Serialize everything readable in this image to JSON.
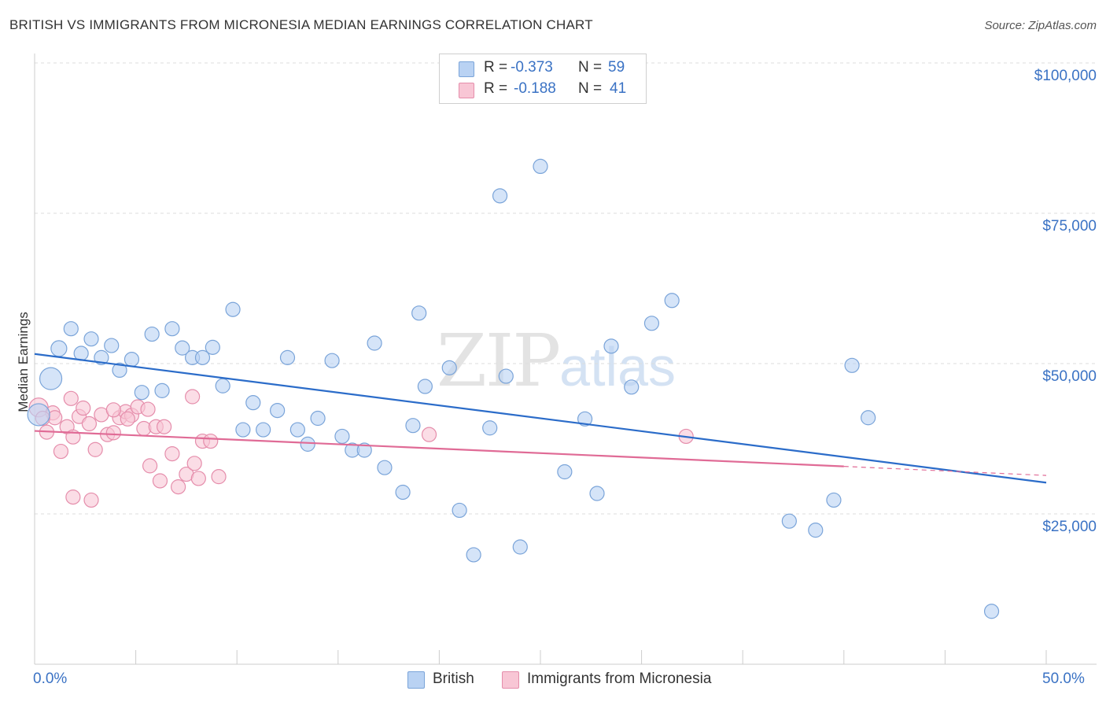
{
  "header": {
    "title": "BRITISH VS IMMIGRANTS FROM MICRONESIA MEDIAN EARNINGS CORRELATION CHART",
    "source": "Source: ZipAtlas.com"
  },
  "watermark": {
    "zip": "ZIP",
    "atlas": "atlas"
  },
  "legend": {
    "rows": [
      {
        "r_label": "R =",
        "r_value": "-0.373",
        "n_label": "N =",
        "n_value": "59"
      },
      {
        "r_label": "R =",
        "r_value": "-0.188",
        "n_label": "N =",
        "n_value": "41"
      }
    ]
  },
  "colors": {
    "british_fill": "#b9d2f3",
    "british_stroke": "#7aa4d9",
    "british_line": "#2b6cc9",
    "micronesia_fill": "#f8c6d5",
    "micronesia_stroke": "#e58dab",
    "micronesia_line": "#e06b96",
    "tick_label": "#3a72c4",
    "grid": "#dddddd"
  },
  "chart_data": {
    "type": "scatter",
    "title": "BRITISH VS IMMIGRANTS FROM MICRONESIA MEDIAN EARNINGS CORRELATION CHART",
    "xlabel": "",
    "ylabel": "Median Earnings",
    "xlim": [
      0,
      50
    ],
    "ylim": [
      5000,
      105000
    ],
    "x_tick_labels": [
      "0.0%",
      "50.0%"
    ],
    "y_ticks": [
      25000,
      50000,
      75000,
      100000
    ],
    "y_tick_labels": [
      "$25,000",
      "$50,000",
      "$75,000",
      "$100,000"
    ],
    "grid": true,
    "legend_position": "top-center",
    "series": [
      {
        "name": "British",
        "points": [
          [
            0.2,
            41500,
            14
          ],
          [
            0.8,
            47500,
            14
          ],
          [
            1.2,
            52500,
            10
          ],
          [
            1.8,
            55800,
            9
          ],
          [
            2.3,
            51700,
            9
          ],
          [
            2.8,
            54100,
            9
          ],
          [
            3.3,
            51000,
            9
          ],
          [
            3.8,
            53000,
            9
          ],
          [
            4.2,
            48900,
            9
          ],
          [
            4.8,
            50700,
            9
          ],
          [
            5.3,
            45200,
            9
          ],
          [
            5.8,
            54900,
            9
          ],
          [
            6.3,
            45500,
            9
          ],
          [
            6.8,
            55800,
            9
          ],
          [
            7.3,
            52600,
            9
          ],
          [
            7.8,
            51000,
            9
          ],
          [
            8.3,
            51000,
            9
          ],
          [
            8.8,
            52700,
            9
          ],
          [
            9.3,
            46300,
            9
          ],
          [
            9.8,
            59000,
            9
          ],
          [
            10.3,
            39000,
            9
          ],
          [
            10.8,
            43500,
            9
          ],
          [
            11.3,
            39000,
            9
          ],
          [
            12.0,
            42200,
            9
          ],
          [
            12.5,
            51000,
            9
          ],
          [
            13.0,
            39000,
            9
          ],
          [
            13.5,
            36600,
            9
          ],
          [
            14.0,
            40900,
            9
          ],
          [
            14.7,
            50500,
            9
          ],
          [
            15.2,
            37900,
            9
          ],
          [
            15.7,
            35600,
            9
          ],
          [
            16.3,
            35600,
            9
          ],
          [
            16.8,
            53400,
            9
          ],
          [
            17.3,
            32700,
            9
          ],
          [
            18.2,
            28600,
            9
          ],
          [
            18.7,
            39700,
            9
          ],
          [
            19.3,
            46200,
            9
          ],
          [
            19.0,
            58400,
            9
          ],
          [
            20.5,
            49300,
            9
          ],
          [
            21.0,
            25600,
            9
          ],
          [
            21.7,
            18200,
            9
          ],
          [
            22.5,
            39300,
            9
          ],
          [
            23.3,
            47900,
            9
          ],
          [
            23.0,
            77900,
            9
          ],
          [
            24.0,
            19500,
            9
          ],
          [
            25.0,
            82800,
            9
          ],
          [
            26.2,
            32000,
            9
          ],
          [
            27.2,
            40800,
            9
          ],
          [
            27.8,
            28400,
            9
          ],
          [
            28.5,
            52900,
            9
          ],
          [
            29.5,
            46100,
            9
          ],
          [
            30.5,
            56700,
            9
          ],
          [
            31.5,
            60500,
            9
          ],
          [
            37.3,
            23800,
            9
          ],
          [
            38.6,
            22300,
            9
          ],
          [
            39.5,
            27300,
            9
          ],
          [
            40.4,
            49700,
            9
          ],
          [
            41.2,
            41000,
            9
          ],
          [
            47.3,
            8800,
            9
          ]
        ],
        "trend": {
          "x": [
            0,
            50
          ],
          "y": [
            51600,
            30200
          ]
        }
      },
      {
        "name": "Immigrants from Micronesia",
        "points": [
          [
            0.2,
            42700,
            12
          ],
          [
            0.6,
            38600,
            9
          ],
          [
            0.9,
            41800,
            9
          ],
          [
            1.3,
            35400,
            9
          ],
          [
            1.6,
            39500,
            9
          ],
          [
            1.9,
            37800,
            9
          ],
          [
            2.2,
            41200,
            9
          ],
          [
            2.4,
            42600,
            9
          ],
          [
            2.7,
            40000,
            9
          ],
          [
            3.0,
            35700,
            9
          ],
          [
            3.3,
            41500,
            9
          ],
          [
            3.6,
            38200,
            9
          ],
          [
            3.9,
            38500,
            9
          ],
          [
            4.2,
            41000,
            9
          ],
          [
            4.5,
            42000,
            9
          ],
          [
            4.8,
            41400,
            9
          ],
          [
            5.1,
            42800,
            9
          ],
          [
            5.4,
            39200,
            9
          ],
          [
            5.7,
            33000,
            9
          ],
          [
            6.0,
            39500,
            9
          ],
          [
            6.4,
            39500,
            9
          ],
          [
            6.8,
            35000,
            9
          ],
          [
            7.1,
            29500,
            9
          ],
          [
            7.5,
            31600,
            9
          ],
          [
            7.9,
            33400,
            9
          ],
          [
            8.3,
            37100,
            9
          ],
          [
            8.7,
            37100,
            9
          ],
          [
            9.1,
            31200,
            9
          ],
          [
            1.9,
            27800,
            9
          ],
          [
            2.8,
            27300,
            9
          ],
          [
            1.8,
            44200,
            9
          ],
          [
            3.9,
            42300,
            9
          ],
          [
            4.6,
            40800,
            9
          ],
          [
            5.6,
            42400,
            9
          ],
          [
            6.2,
            30500,
            9
          ],
          [
            7.8,
            44500,
            9
          ],
          [
            8.1,
            30900,
            9
          ],
          [
            19.5,
            38200,
            9
          ],
          [
            32.2,
            37900,
            9
          ],
          [
            1.0,
            41000,
            9
          ],
          [
            0.4,
            40900,
            9
          ]
        ],
        "trend": {
          "x": [
            0,
            40
          ],
          "y": [
            38800,
            32900
          ]
        },
        "trend_extension": {
          "x": [
            40,
            50
          ],
          "y": [
            32900,
            31400
          ]
        }
      }
    ]
  },
  "bottom_legend": {
    "items": [
      {
        "label": "British"
      },
      {
        "label": "Immigrants from Micronesia"
      }
    ]
  }
}
